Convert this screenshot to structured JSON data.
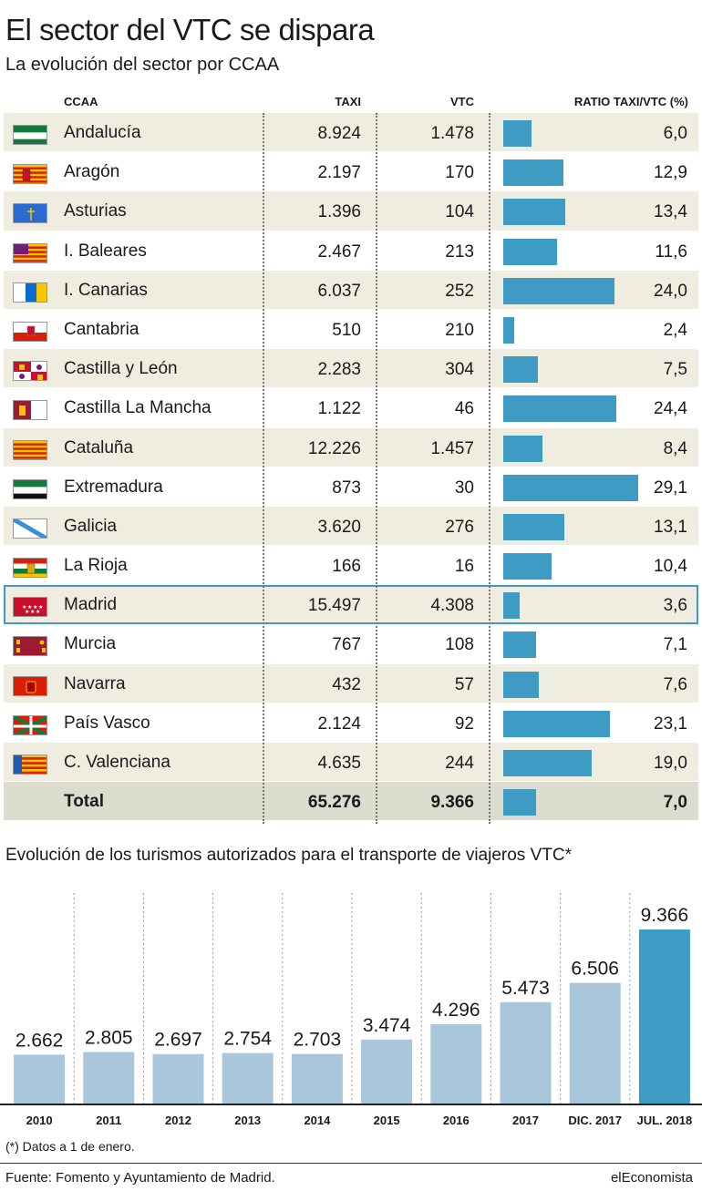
{
  "title": "El sector del VTC se dispara",
  "subtitle": "La evolución del sector por CCAA",
  "table": {
    "headers": {
      "ccaa": "CCAA",
      "taxi": "TAXI",
      "vtc": "VTC",
      "ratio": "RATIO TAXI/VTC (%)"
    },
    "rows": [
      {
        "ccaa": "Andalucía",
        "taxi": "8.924",
        "vtc": "1.478",
        "ratio": "6,0",
        "ratio_value": 6.0,
        "flag": "andalucia"
      },
      {
        "ccaa": "Aragón",
        "taxi": "2.197",
        "vtc": "170",
        "ratio": "12,9",
        "ratio_value": 12.9,
        "flag": "aragon"
      },
      {
        "ccaa": "Asturias",
        "taxi": "1.396",
        "vtc": "104",
        "ratio": "13,4",
        "ratio_value": 13.4,
        "flag": "asturias"
      },
      {
        "ccaa": "I. Baleares",
        "taxi": "2.467",
        "vtc": "213",
        "ratio": "11,6",
        "ratio_value": 11.6,
        "flag": "baleares"
      },
      {
        "ccaa": "I. Canarias",
        "taxi": "6.037",
        "vtc": "252",
        "ratio": "24,0",
        "ratio_value": 24.0,
        "flag": "canarias"
      },
      {
        "ccaa": "Cantabria",
        "taxi": "510",
        "vtc": "210",
        "ratio": "2,4",
        "ratio_value": 2.4,
        "flag": "cantabria"
      },
      {
        "ccaa": "Castilla y León",
        "taxi": "2.283",
        "vtc": "304",
        "ratio": "7,5",
        "ratio_value": 7.5,
        "flag": "castillaleon"
      },
      {
        "ccaa": "Castilla La Mancha",
        "taxi": "1.122",
        "vtc": "46",
        "ratio": "24,4",
        "ratio_value": 24.4,
        "flag": "castillamancha"
      },
      {
        "ccaa": "Cataluña",
        "taxi": "12.226",
        "vtc": "1.457",
        "ratio": "8,4",
        "ratio_value": 8.4,
        "flag": "cataluna"
      },
      {
        "ccaa": "Extremadura",
        "taxi": "873",
        "vtc": "30",
        "ratio": "29,1",
        "ratio_value": 29.1,
        "flag": "extremadura"
      },
      {
        "ccaa": "Galicia",
        "taxi": "3.620",
        "vtc": "276",
        "ratio": "13,1",
        "ratio_value": 13.1,
        "flag": "galicia"
      },
      {
        "ccaa": "La Rioja",
        "taxi": "166",
        "vtc": "16",
        "ratio": "10,4",
        "ratio_value": 10.4,
        "flag": "rioja"
      },
      {
        "ccaa": "Madrid",
        "taxi": "15.497",
        "vtc": "4.308",
        "ratio": "3,6",
        "ratio_value": 3.6,
        "flag": "madrid",
        "highlight": true
      },
      {
        "ccaa": "Murcia",
        "taxi": "767",
        "vtc": "108",
        "ratio": "7,1",
        "ratio_value": 7.1,
        "flag": "murcia"
      },
      {
        "ccaa": "Navarra",
        "taxi": "432",
        "vtc": "57",
        "ratio": "7,6",
        "ratio_value": 7.6,
        "flag": "navarra"
      },
      {
        "ccaa": "País Vasco",
        "taxi": "2.124",
        "vtc": "92",
        "ratio": "23,1",
        "ratio_value": 23.1,
        "flag": "paisvasco"
      },
      {
        "ccaa": "C. Valenciana",
        "taxi": "4.635",
        "vtc": "244",
        "ratio": "19,0",
        "ratio_value": 19.0,
        "flag": "valenciana"
      }
    ],
    "total": {
      "ccaa": "Total",
      "taxi": "65.276",
      "vtc": "9.366",
      "ratio": "7,0",
      "ratio_value": 7.0
    }
  },
  "chart_data": {
    "type": "bar",
    "title": "Evolución de los turismos autorizados para el transporte de viajeros VTC*",
    "categories": [
      "2010",
      "2011",
      "2012",
      "2013",
      "2014",
      "2015",
      "2016",
      "2017",
      "DIC. 2017",
      "JUL. 2018"
    ],
    "values": [
      2662,
      2805,
      2697,
      2754,
      2703,
      3474,
      4296,
      5473,
      6506,
      9366
    ],
    "labels": [
      "2.662",
      "2.805",
      "2.697",
      "2.754",
      "2.703",
      "3.474",
      "4.296",
      "5.473",
      "6.506",
      "9.366"
    ],
    "highlight_index": 9,
    "ylim": [
      0,
      10000
    ],
    "colors": {
      "bar": "#a9c6db",
      "highlight": "#3e9bc4"
    }
  },
  "footnote": "(*) Datos a 1 de enero.",
  "source": "Fuente: Fomento y Ayuntamiento de Madrid.",
  "brand": "elEconomista",
  "colors": {
    "ratio_bar": "#3e9bc4",
    "row_shade": "#eeede0",
    "total_shade": "#dcdccf"
  }
}
